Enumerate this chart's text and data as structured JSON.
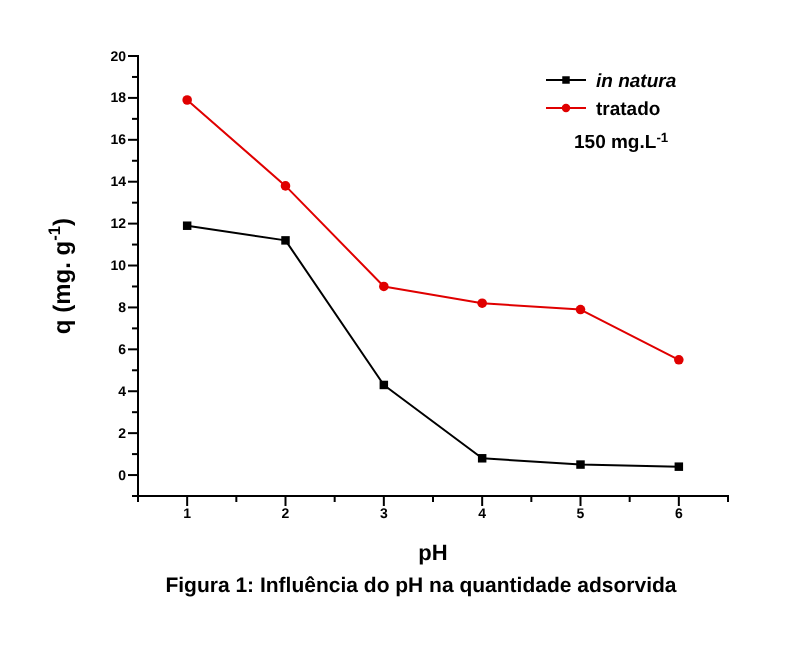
{
  "chart_data": {
    "type": "line",
    "xlabel": "pH",
    "ylabel": "q (mg. g$^{-1}$)",
    "x": [
      1,
      2,
      3,
      4,
      5,
      6
    ],
    "series": [
      {
        "name": "in natura",
        "color": "#000000",
        "marker": "square",
        "values": [
          11.9,
          11.2,
          4.3,
          0.8,
          0.5,
          0.4
        ]
      },
      {
        "name": "tratado",
        "color": "#e00000",
        "marker": "circle",
        "values": [
          17.9,
          13.8,
          9.0,
          8.2,
          7.9,
          5.5
        ]
      }
    ],
    "xlim": [
      0.5,
      6.5
    ],
    "xticks": [
      {
        "value": 0.5,
        "label": null
      },
      1,
      {
        "value": 1.5,
        "label": null
      },
      2,
      {
        "value": 2.5,
        "label": null
      },
      3,
      {
        "value": 3.5,
        "label": null
      },
      4,
      {
        "value": 4.5,
        "label": null
      },
      5,
      {
        "value": 5.5,
        "label": null
      },
      6,
      {
        "value": 6.5,
        "label": null
      }
    ],
    "ylim": [
      -1,
      20
    ],
    "yticks": [
      {
        "value": -1,
        "label": null
      },
      0,
      {
        "value": 1,
        "label": null
      },
      2,
      {
        "value": 3,
        "label": null
      },
      4,
      {
        "value": 5,
        "label": null
      },
      6,
      {
        "value": 7,
        "label": null
      },
      8,
      {
        "value": 9,
        "label": null
      },
      10,
      {
        "value": 11,
        "label": null
      },
      12,
      {
        "value": 13,
        "label": null
      },
      14,
      {
        "value": 15,
        "label": null
      },
      16,
      {
        "value": 17,
        "label": null
      },
      18,
      {
        "value": 19,
        "label": null
      },
      20
    ],
    "legend": "top right",
    "grid": false,
    "line_style": "solid",
    "annotations": [
      "150 mg.L$^{-1}$",
      "Figura 1: Influência do pH na quantidade adsorvida"
    ]
  }
}
